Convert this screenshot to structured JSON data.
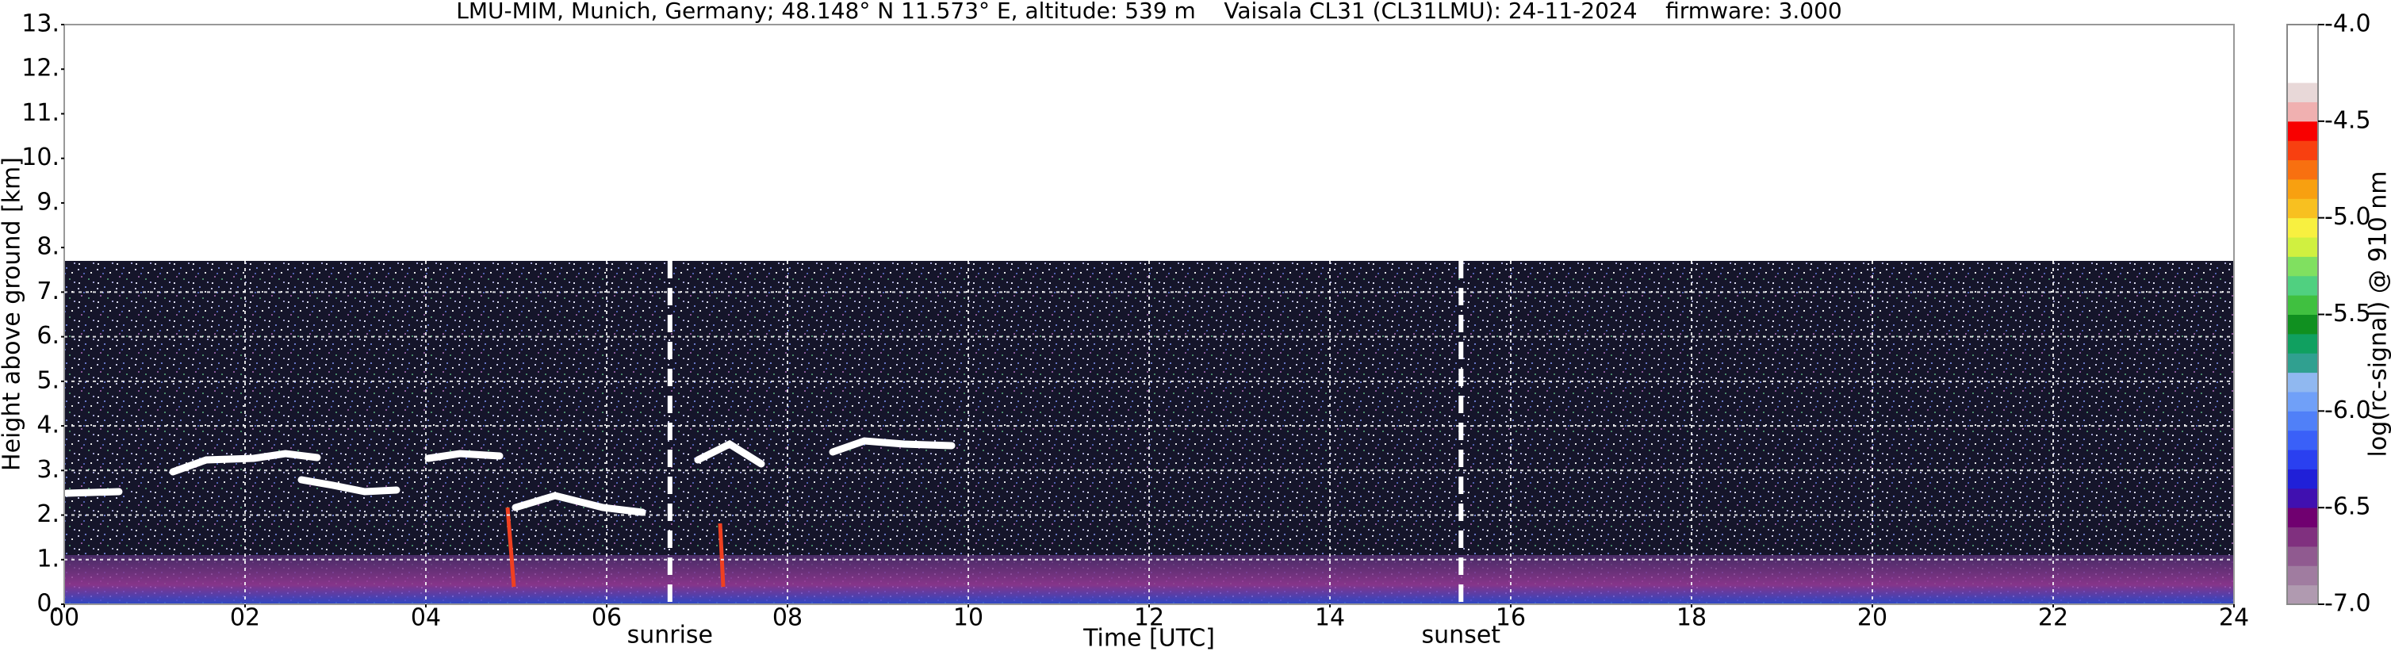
{
  "chart_data": {
    "type": "heatmap",
    "title": "LMU-MIM, Munich, Germany; 48.148° N 11.573° E, altitude: 539 m    Vaisala CL31 (CL31LMU): 24-11-2024    firmware: 3.000",
    "xlabel": "Time [UTC]",
    "ylabel": "Height above ground [km]",
    "xlim": [
      0,
      24
    ],
    "xticks": [
      {
        "value": 0,
        "label": "00"
      },
      {
        "value": 2,
        "label": "02"
      },
      {
        "value": 4,
        "label": "04"
      },
      {
        "value": 6,
        "label": "06"
      },
      {
        "value": 8,
        "label": "08"
      },
      10,
      12,
      14,
      16,
      18,
      20,
      22,
      24
    ],
    "ylim": [
      0,
      13
    ],
    "yticks": [
      {
        "value": 0,
        "label": "0."
      },
      {
        "value": 1,
        "label": "1."
      },
      {
        "value": 2,
        "label": "2."
      },
      {
        "value": 3,
        "label": "3."
      },
      {
        "value": 4,
        "label": "4."
      },
      {
        "value": 5,
        "label": "5."
      },
      {
        "value": 6,
        "label": "6."
      },
      {
        "value": 7,
        "label": "7."
      },
      {
        "value": 8,
        "label": "8."
      },
      {
        "value": 9,
        "label": "9."
      },
      {
        "value": 10,
        "label": "10."
      },
      {
        "value": 11,
        "label": "11."
      },
      {
        "value": 12,
        "label": "12."
      },
      {
        "value": 13,
        "label": "13."
      }
    ],
    "grid": true,
    "annotations": [
      {
        "text": "sunrise",
        "x": 6.7
      },
      {
        "text": "sunset",
        "x": 15.45
      }
    ],
    "colorbar": {
      "label": "log(rc-signal) @ 910 nm",
      "lim": [
        -7,
        -4
      ],
      "ticks": [
        {
          "value": -4,
          "label": "-4.0"
        },
        -4.5,
        {
          "value": -5,
          "label": "-5.0"
        },
        -5.5,
        {
          "value": -6,
          "label": "-6.0"
        },
        -6.5,
        {
          "value": -7,
          "label": "-7.0"
        }
      ],
      "colors": [
        "#b09ab0",
        "#a07ca0",
        "#905a90",
        "#80307f",
        "#700070",
        "#4010b0",
        "#2020d8",
        "#2a40f0",
        "#3a60f8",
        "#5080f8",
        "#70a0f8",
        "#90b8f0",
        "#30a090",
        "#10a060",
        "#109020",
        "#40c040",
        "#50d080",
        "#80e060",
        "#d0f040",
        "#f8f040",
        "#f8c020",
        "#f8a010",
        "#f87010",
        "#f84010",
        "#f80000",
        "#f0b0b0",
        "#e8d8d8",
        "#ffffff",
        "#ffffff",
        "#ffffff"
      ]
    }
  }
}
